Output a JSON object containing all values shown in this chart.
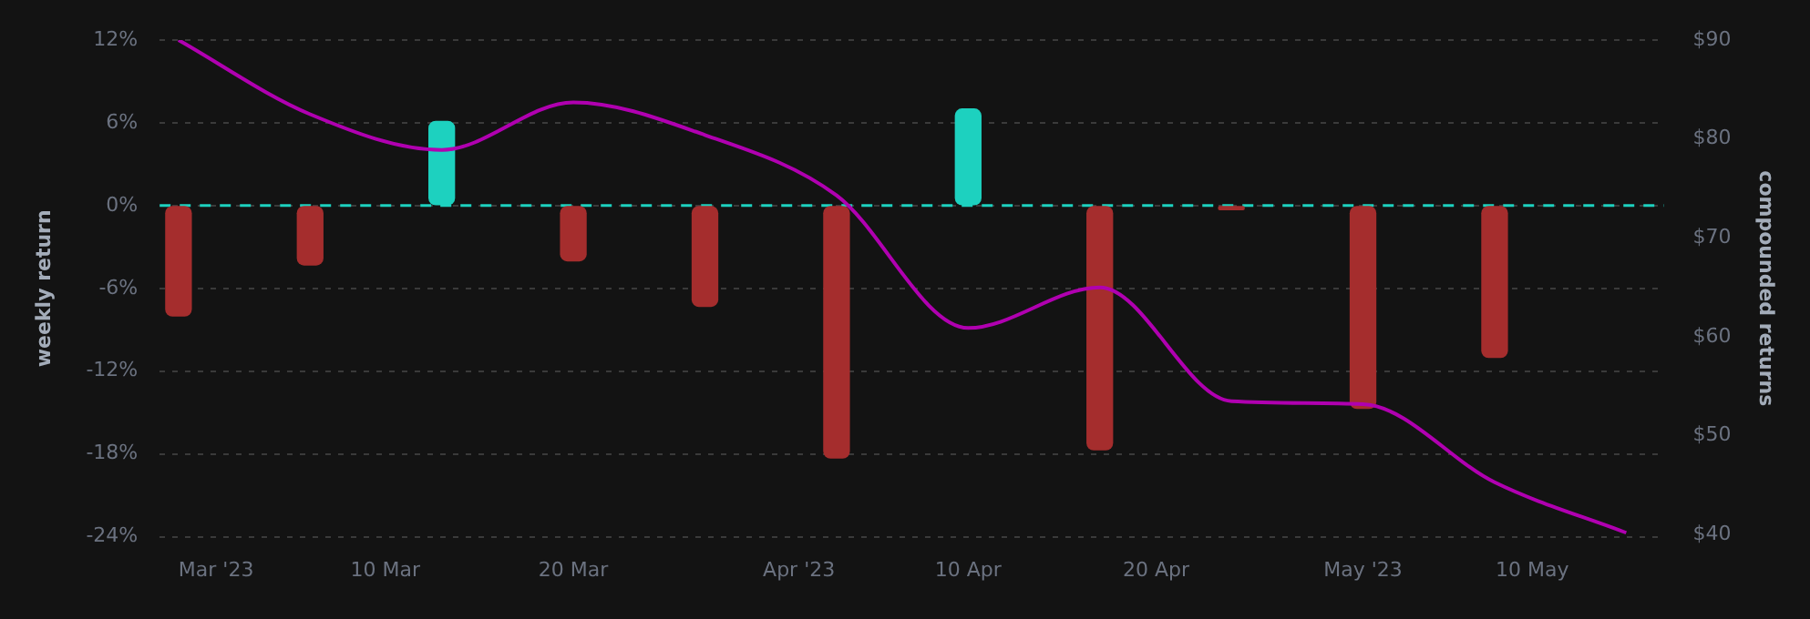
{
  "chart_data": {
    "type": "bar",
    "ylabel": "weekly return",
    "y2label": "compounded returns",
    "series": [
      {
        "x": [
          "2023-02-27",
          "2023-03-06",
          "2023-03-13",
          "2023-03-20",
          "2023-03-27",
          "2023-04-03",
          "2023-04-10",
          "2023-04-17",
          "2023-04-24",
          "2023-05-01",
          "2023-05-08"
        ],
        "values": [
          -8.0,
          -4.3,
          6.1,
          -4.0,
          -7.3,
          -18.3,
          7.0,
          -17.7,
          -0.3,
          -14.7,
          -11.0
        ],
        "colors": [
          "#a52d2d",
          "#a52d2d",
          "#1dd1bf",
          "#a52d2d",
          "#a52d2d",
          "#a52d2d",
          "#1dd1bf",
          "#a52d2d",
          "#a52d2d",
          "#a52d2d",
          "#a52d2d"
        ]
      },
      {
        "type": "line",
        "axis": "y2",
        "color": "#b000b0",
        "x": [
          "2023-02-27",
          "2023-03-06",
          "2023-03-13",
          "2023-03-20",
          "2023-03-27",
          "2023-04-03",
          "2023-04-10",
          "2023-04-17",
          "2023-04-24",
          "2023-05-01",
          "2023-05-08",
          "2023-05-15"
        ],
        "values": [
          90,
          82.5,
          78.9,
          83.7,
          80.4,
          74.3,
          60.9,
          65.0,
          53.5,
          53.2,
          45.3,
          40.2
        ]
      }
    ],
    "xlim": [
      "2023-02-26",
      "2023-05-17"
    ],
    "xticks": [
      {
        "value": "2023-03-01",
        "label": "Mar '23"
      },
      {
        "value": "2023-03-10",
        "label": "10 Mar"
      },
      {
        "value": "2023-03-20",
        "label": "20 Mar"
      },
      {
        "value": "2023-04-01",
        "label": "Apr '23"
      },
      {
        "value": "2023-04-10",
        "label": "10 Apr"
      },
      {
        "value": "2023-04-20",
        "label": "20 Apr"
      },
      {
        "value": "2023-05-01",
        "label": "May '23"
      },
      {
        "value": "2023-05-10",
        "label": "10 May"
      }
    ],
    "ylim": [
      -24,
      12
    ],
    "yticks": [
      {
        "value": -24,
        "label": "-24%"
      },
      {
        "value": -18,
        "label": "-18%"
      },
      {
        "value": -12,
        "label": "-12%"
      },
      {
        "value": -6,
        "label": "-6%"
      },
      {
        "value": 0,
        "label": "0%"
      },
      {
        "value": 6,
        "label": "6%"
      },
      {
        "value": 12,
        "label": "12%"
      }
    ],
    "y2lim": [
      39.8,
      90
    ],
    "y2ticks": [
      {
        "value": 40,
        "label": "$40"
      },
      {
        "value": 50,
        "label": "$50"
      },
      {
        "value": 60,
        "label": "$60"
      },
      {
        "value": 70,
        "label": "$70"
      },
      {
        "value": 80,
        "label": "$80"
      },
      {
        "value": 90,
        "label": "$90"
      }
    ],
    "ref_lines": [
      {
        "axis": "y",
        "value": 0,
        "color": "#1dd1bf",
        "line_style": "dashed"
      }
    ],
    "grid": "y",
    "legend": false,
    "marker": "none",
    "line_style": "solid"
  }
}
